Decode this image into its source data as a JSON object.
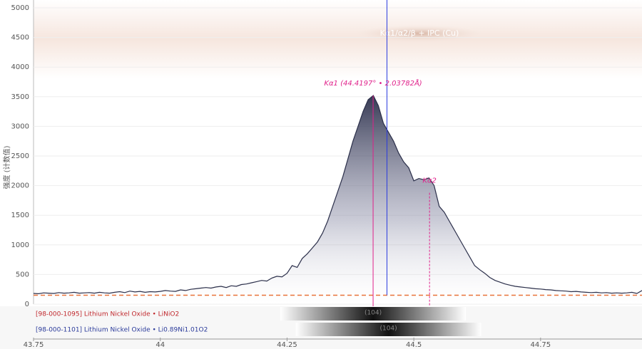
{
  "chart_data": {
    "type": "area",
    "y_label": "强度 (计数值)",
    "title": "Kα1/α2/β + IPC (Cu)",
    "xlim": [
      43.75,
      44.95
    ],
    "ylim": [
      0,
      5000
    ],
    "xticks": [
      43.75,
      44,
      44.25,
      44.5,
      44.75
    ],
    "yticks": [
      0,
      500,
      1000,
      1500,
      2000,
      2500,
      3000,
      3500,
      4000,
      4500,
      5000
    ],
    "grid": true,
    "color": "#2b2f4a",
    "x": [
      43.75,
      43.76,
      43.77,
      43.78,
      43.79,
      43.8,
      43.81,
      43.82,
      43.83,
      43.84,
      43.85,
      43.86,
      43.87,
      43.88,
      43.89,
      43.9,
      43.91,
      43.92,
      43.93,
      43.94,
      43.95,
      43.96,
      43.97,
      43.98,
      43.99,
      44,
      44.01,
      44.02,
      44.03,
      44.04,
      44.05,
      44.06,
      44.07,
      44.08,
      44.09,
      44.1,
      44.11,
      44.12,
      44.13,
      44.14,
      44.15,
      44.16,
      44.17,
      44.18,
      44.19,
      44.2,
      44.21,
      44.22,
      44.23,
      44.24,
      44.25,
      44.26,
      44.27,
      44.28,
      44.29,
      44.3,
      44.31,
      44.32,
      44.33,
      44.34,
      44.35,
      44.36,
      44.37,
      44.38,
      44.39,
      44.4,
      44.41,
      44.42,
      44.43,
      44.44,
      44.45,
      44.46,
      44.47,
      44.48,
      44.49,
      44.5,
      44.51,
      44.52,
      44.53,
      44.54,
      44.55,
      44.56,
      44.57,
      44.58,
      44.59,
      44.6,
      44.61,
      44.62,
      44.63,
      44.64,
      44.65,
      44.66,
      44.67,
      44.68,
      44.69,
      44.7,
      44.71,
      44.72,
      44.73,
      44.74,
      44.75,
      44.76,
      44.77,
      44.78,
      44.79,
      44.8,
      44.81,
      44.82,
      44.83,
      44.84,
      44.85,
      44.86,
      44.87,
      44.88,
      44.89,
      44.9,
      44.91,
      44.92,
      44.93,
      44.94,
      44.95
    ],
    "values": [
      180,
      175,
      190,
      185,
      180,
      195,
      185,
      190,
      200,
      185,
      190,
      195,
      185,
      200,
      190,
      185,
      200,
      210,
      195,
      220,
      205,
      215,
      200,
      210,
      205,
      215,
      230,
      220,
      215,
      240,
      230,
      250,
      260,
      270,
      280,
      270,
      290,
      300,
      280,
      310,
      300,
      330,
      340,
      360,
      380,
      400,
      390,
      440,
      470,
      460,
      520,
      650,
      620,
      770,
      850,
      950,
      1050,
      1200,
      1400,
      1650,
      1900,
      2150,
      2450,
      2750,
      3000,
      3250,
      3450,
      3520,
      3350,
      3050,
      2900,
      2750,
      2550,
      2400,
      2300,
      2080,
      2120,
      2100,
      2130,
      2000,
      1650,
      1550,
      1400,
      1250,
      1100,
      950,
      800,
      650,
      580,
      520,
      450,
      400,
      370,
      340,
      320,
      300,
      290,
      280,
      270,
      260,
      255,
      245,
      240,
      230,
      225,
      220,
      210,
      215,
      205,
      200,
      195,
      200,
      190,
      195,
      185,
      190,
      185,
      190,
      200,
      180,
      230
    ],
    "baseline": 150,
    "cursor_x": 44.447,
    "markers": [
      {
        "label": "Kα1 (44.4197° • 2.03782Å)",
        "x": 44.4197,
        "y": 3520,
        "color": "#e0208a"
      },
      {
        "label": "Kα2",
        "x": 44.531,
        "y": 1880,
        "color": "#e0208a"
      }
    ],
    "references": [
      {
        "label": "[98-000-1095] Lithium Nickel Oxide • LiNiO2",
        "color": "#c0282d",
        "peak_x": 44.4197,
        "hkl": "(104)"
      },
      {
        "label": "[98-000-1101] Lithium Nickel Oxide • Li0.89Ni1.01O2",
        "color": "#2a3a9a",
        "peak_x": 44.45,
        "hkl": "(104)"
      }
    ]
  }
}
